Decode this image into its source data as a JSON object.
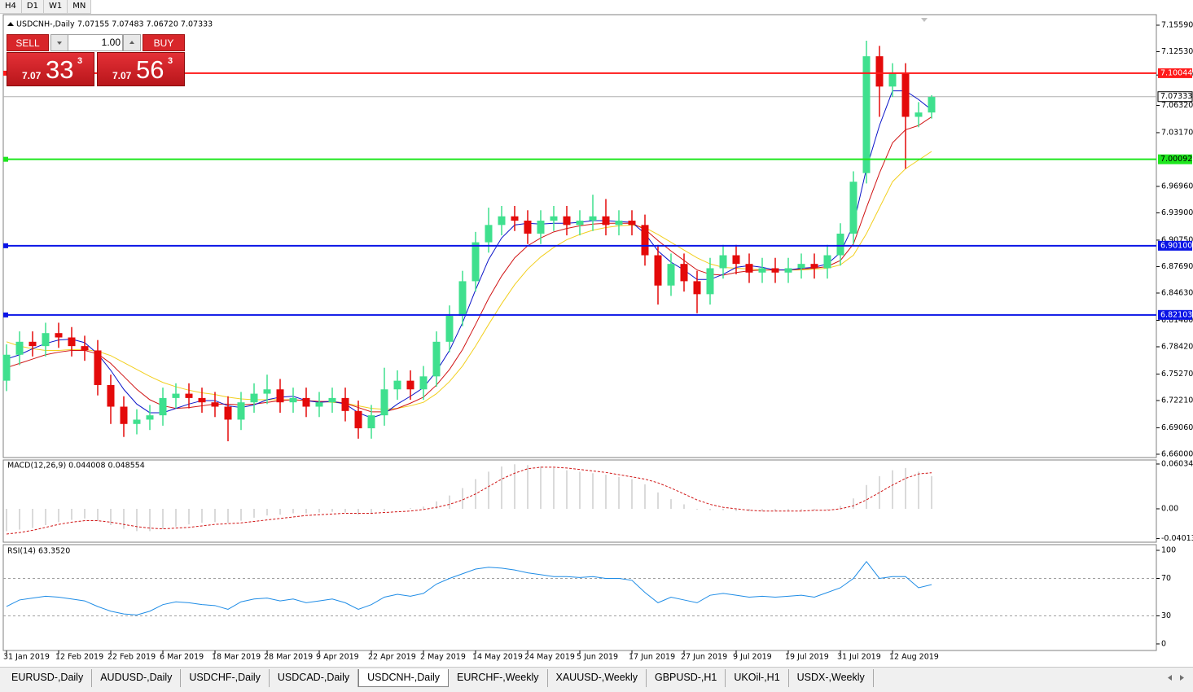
{
  "toolbar": {
    "timeframes": [
      "H4",
      "D1",
      "W1",
      "MN"
    ]
  },
  "trade_panel": {
    "sell": "SELL",
    "buy": "BUY",
    "lot": "1.00",
    "bid": {
      "big": "7.07",
      "pips": "33",
      "point": "3"
    },
    "ask": {
      "big": "7.07",
      "pips": "56",
      "point": "3"
    }
  },
  "chart_data": {
    "type": "candlestick",
    "title": "USDCNH-,Daily",
    "header_values": "7.07155 7.07483 7.06720 7.07333",
    "categories": [
      "31 Jan 2019",
      null,
      null,
      null,
      "12 Feb 2019",
      null,
      null,
      null,
      "22 Feb 2019",
      null,
      null,
      null,
      "6 Mar 2019",
      null,
      null,
      null,
      "18 Mar 2019",
      null,
      null,
      null,
      "28 Mar 2019",
      null,
      null,
      null,
      "9 Apr 2019",
      null,
      null,
      null,
      "22 Apr 2019",
      null,
      null,
      null,
      "2 May 2019",
      null,
      null,
      null,
      "14 May 2019",
      null,
      null,
      null,
      "24 May 2019",
      null,
      null,
      null,
      "5 Jun 2019",
      null,
      null,
      null,
      "17 Jun 2019",
      null,
      null,
      null,
      "27 Jun 2019",
      null,
      null,
      null,
      "9 Jul 2019",
      null,
      null,
      null,
      "19 Jul 2019",
      null,
      null,
      null,
      "31 Jul 2019",
      null,
      null,
      null,
      "12 Aug 2019",
      null,
      null,
      null
    ],
    "open": [
      6.745,
      6.775,
      6.79,
      6.785,
      6.8,
      6.795,
      6.785,
      6.78,
      6.74,
      6.715,
      6.695,
      6.7,
      6.705,
      6.725,
      6.73,
      6.725,
      6.72,
      6.715,
      6.7,
      6.72,
      6.73,
      6.735,
      6.72,
      6.725,
      6.715,
      6.72,
      6.725,
      6.71,
      6.69,
      6.705,
      6.735,
      6.745,
      6.735,
      6.75,
      6.79,
      6.82,
      6.86,
      6.905,
      6.925,
      6.935,
      6.93,
      6.915,
      6.93,
      6.935,
      6.925,
      6.93,
      6.935,
      6.925,
      6.93,
      6.925,
      6.89,
      6.855,
      6.88,
      6.86,
      6.845,
      6.875,
      6.89,
      6.88,
      6.87,
      6.875,
      6.87,
      6.875,
      6.88,
      6.875,
      6.89,
      6.915,
      6.985,
      7.12,
      7.085,
      7.1,
      7.05,
      7.055
    ],
    "high": [
      6.787,
      6.802,
      6.802,
      6.812,
      6.812,
      6.807,
      6.797,
      6.792,
      6.752,
      6.727,
      6.712,
      6.717,
      6.737,
      6.742,
      6.742,
      6.737,
      6.732,
      6.727,
      6.732,
      6.742,
      6.752,
      6.747,
      6.737,
      6.737,
      6.732,
      6.737,
      6.737,
      6.722,
      6.717,
      6.76,
      6.757,
      6.757,
      6.762,
      6.802,
      6.832,
      6.872,
      6.917,
      6.945,
      6.947,
      6.947,
      6.942,
      6.942,
      6.947,
      6.947,
      6.942,
      6.96,
      6.955,
      6.942,
      6.942,
      6.937,
      6.902,
      6.892,
      6.892,
      6.872,
      6.887,
      6.902,
      6.902,
      6.892,
      6.887,
      6.887,
      6.887,
      6.892,
      6.892,
      6.902,
      6.927,
      6.987,
      7.138,
      7.132,
      7.112,
      7.112,
      7.067,
      7.075
    ],
    "low": [
      6.733,
      6.763,
      6.773,
      6.773,
      6.783,
      6.773,
      6.768,
      6.728,
      6.695,
      6.68,
      6.683,
      6.688,
      6.693,
      6.713,
      6.713,
      6.708,
      6.703,
      6.675,
      6.688,
      6.708,
      6.718,
      6.708,
      6.708,
      6.703,
      6.703,
      6.708,
      6.698,
      6.678,
      6.678,
      6.693,
      6.723,
      6.723,
      6.723,
      6.738,
      6.778,
      6.808,
      6.848,
      6.893,
      6.913,
      6.918,
      6.903,
      6.903,
      6.918,
      6.913,
      6.913,
      6.918,
      6.913,
      6.913,
      6.913,
      6.878,
      6.833,
      6.843,
      6.848,
      6.823,
      6.833,
      6.863,
      6.868,
      6.858,
      6.858,
      6.858,
      6.858,
      6.863,
      6.863,
      6.863,
      6.878,
      6.903,
      6.973,
      7.05,
      7.073,
      6.99,
      7.038,
      7.048
    ],
    "close": [
      6.775,
      6.79,
      6.785,
      6.8,
      6.795,
      6.785,
      6.78,
      6.74,
      6.715,
      6.695,
      6.7,
      6.705,
      6.725,
      6.73,
      6.725,
      6.72,
      6.715,
      6.7,
      6.72,
      6.73,
      6.735,
      6.72,
      6.725,
      6.715,
      6.72,
      6.725,
      6.71,
      6.69,
      6.705,
      6.735,
      6.745,
      6.735,
      6.75,
      6.79,
      6.82,
      6.86,
      6.905,
      6.925,
      6.935,
      6.93,
      6.915,
      6.93,
      6.935,
      6.925,
      6.93,
      6.935,
      6.925,
      6.93,
      6.925,
      6.89,
      6.855,
      6.88,
      6.86,
      6.845,
      6.875,
      6.89,
      6.88,
      6.87,
      6.875,
      6.87,
      6.875,
      6.88,
      6.875,
      6.89,
      6.915,
      6.975,
      7.12,
      7.085,
      7.1,
      7.05,
      7.055,
      7.073
    ],
    "colors": {
      "up": "#3fe08e",
      "down": "#e40a0a"
    },
    "moving_averages": [
      {
        "color": "#f2cf1f",
        "values": [
          6.79,
          6.785,
          6.782,
          6.78,
          6.78,
          6.781,
          6.781,
          6.779,
          6.774,
          6.766,
          6.758,
          6.75,
          6.743,
          6.738,
          6.734,
          6.731,
          6.729,
          6.726,
          6.724,
          6.723,
          6.723,
          6.723,
          6.723,
          6.722,
          6.721,
          6.72,
          6.719,
          6.716,
          6.713,
          6.712,
          6.713,
          6.716,
          6.72,
          6.73,
          6.744,
          6.762,
          6.785,
          6.81,
          6.834,
          6.856,
          6.874,
          6.888,
          6.899,
          6.908,
          6.914,
          6.919,
          6.922,
          6.924,
          6.925,
          6.922,
          6.914,
          6.905,
          6.896,
          6.887,
          6.88,
          6.876,
          6.875,
          6.874,
          6.873,
          6.873,
          6.873,
          6.873,
          6.874,
          6.875,
          6.879,
          6.89,
          6.915,
          6.945,
          6.975,
          6.99,
          7.0,
          7.01
        ]
      },
      {
        "color": "#d01414",
        "values": [
          6.76,
          6.765,
          6.77,
          6.775,
          6.778,
          6.78,
          6.78,
          6.776,
          6.765,
          6.75,
          6.735,
          6.723,
          6.716,
          6.713,
          6.714,
          6.716,
          6.718,
          6.718,
          6.717,
          6.718,
          6.72,
          6.722,
          6.723,
          6.722,
          6.721,
          6.721,
          6.719,
          6.714,
          6.709,
          6.709,
          6.713,
          6.719,
          6.726,
          6.74,
          6.758,
          6.781,
          6.81,
          6.84,
          6.866,
          6.887,
          6.901,
          6.91,
          6.917,
          6.921,
          6.924,
          6.926,
          6.927,
          6.927,
          6.927,
          6.92,
          6.907,
          6.895,
          6.884,
          6.873,
          6.868,
          6.867,
          6.87,
          6.872,
          6.873,
          6.873,
          6.873,
          6.874,
          6.875,
          6.877,
          6.884,
          6.903,
          6.945,
          6.985,
          7.02,
          7.035,
          7.04,
          7.05
        ]
      },
      {
        "color": "#0a14c8",
        "values": [
          6.77,
          6.775,
          6.782,
          6.788,
          6.792,
          6.793,
          6.789,
          6.776,
          6.757,
          6.735,
          6.718,
          6.708,
          6.708,
          6.713,
          6.718,
          6.722,
          6.722,
          6.716,
          6.714,
          6.717,
          6.723,
          6.726,
          6.727,
          6.722,
          6.72,
          6.721,
          6.718,
          6.708,
          6.702,
          6.707,
          6.718,
          6.727,
          6.737,
          6.756,
          6.78,
          6.812,
          6.85,
          6.885,
          6.91,
          6.925,
          6.927,
          6.926,
          6.927,
          6.927,
          6.928,
          6.93,
          6.93,
          6.929,
          6.928,
          6.915,
          6.895,
          6.882,
          6.873,
          6.862,
          6.862,
          6.868,
          6.876,
          6.878,
          6.876,
          6.873,
          6.873,
          6.875,
          6.876,
          6.88,
          6.893,
          6.925,
          6.99,
          7.04,
          7.08,
          7.08,
          7.07,
          7.058
        ]
      }
    ],
    "ylim": [
      6.6562,
      7.1681
    ],
    "yticks": [
      {
        "value": 7.1559,
        "label": "7.15590"
      },
      {
        "value": 7.1253,
        "label": "7.12530"
      },
      {
        "value": 7.0983,
        "label": "7.09830"
      },
      {
        "value": 7.0632,
        "label": "7.06320"
      },
      {
        "value": 7.0317,
        "label": "7.03170"
      },
      {
        "value": 6.9696,
        "label": "6.96960"
      },
      {
        "value": 6.939,
        "label": "6.93900"
      },
      {
        "value": 6.9075,
        "label": "6.90750"
      },
      {
        "value": 6.8769,
        "label": "6.87690"
      },
      {
        "value": 6.8463,
        "label": "6.84630"
      },
      {
        "value": 6.8148,
        "label": "6.81480"
      },
      {
        "value": 6.7842,
        "label": "6.78420"
      },
      {
        "value": 6.7527,
        "label": "6.75270"
      },
      {
        "value": 6.7221,
        "label": "6.72210"
      },
      {
        "value": 6.6906,
        "label": "6.69060"
      },
      {
        "value": 6.66,
        "label": "6.66000"
      }
    ],
    "levels": [
      {
        "value": 7.10044,
        "color": "#ff1a1a",
        "text_color": "#ffffff"
      },
      {
        "value": 7.00092,
        "color": "#1ee61e",
        "text_color": "#000000"
      },
      {
        "value": 6.901,
        "label": "6.90100",
        "color": "#0a14e6",
        "text_color": "#ffffff"
      },
      {
        "value": 6.82103,
        "color": "#0a14e6",
        "text_color": "#ffffff"
      }
    ],
    "last_price": 7.07333,
    "macd": {
      "label": "MACD(12,26,9) 0.044008 0.048554",
      "histogram": [
        -0.03,
        -0.028,
        -0.026,
        -0.022,
        -0.018,
        -0.015,
        -0.013,
        -0.016,
        -0.022,
        -0.027,
        -0.03,
        -0.03,
        -0.027,
        -0.024,
        -0.021,
        -0.019,
        -0.018,
        -0.019,
        -0.016,
        -0.012,
        -0.009,
        -0.008,
        -0.006,
        -0.006,
        -0.005,
        -0.004,
        -0.005,
        -0.008,
        -0.007,
        -0.003,
        0.0,
        0.001,
        0.003,
        0.01,
        0.018,
        0.028,
        0.04,
        0.05,
        0.057,
        0.06,
        0.059,
        0.057,
        0.055,
        0.052,
        0.05,
        0.048,
        0.046,
        0.043,
        0.04,
        0.033,
        0.022,
        0.013,
        0.006,
        -0.001,
        -0.002,
        -0.002,
        -0.003,
        -0.003,
        -0.003,
        -0.003,
        -0.002,
        -0.002,
        -0.002,
        -0.001,
        0.004,
        0.014,
        0.032,
        0.044,
        0.052,
        0.055,
        0.05,
        0.044008
      ],
      "signal": [
        -0.034,
        -0.032,
        -0.029,
        -0.025,
        -0.021,
        -0.018,
        -0.016,
        -0.016,
        -0.018,
        -0.021,
        -0.024,
        -0.026,
        -0.027,
        -0.026,
        -0.025,
        -0.023,
        -0.021,
        -0.02,
        -0.019,
        -0.017,
        -0.015,
        -0.013,
        -0.011,
        -0.009,
        -0.008,
        -0.007,
        -0.006,
        -0.006,
        -0.006,
        -0.005,
        -0.004,
        -0.003,
        -0.001,
        0.002,
        0.006,
        0.012,
        0.02,
        0.03,
        0.04,
        0.048,
        0.054,
        0.056,
        0.056,
        0.055,
        0.053,
        0.051,
        0.049,
        0.046,
        0.043,
        0.04,
        0.035,
        0.028,
        0.02,
        0.012,
        0.006,
        0.002,
        0.0,
        -0.002,
        -0.003,
        -0.003,
        -0.003,
        -0.003,
        -0.002,
        -0.002,
        0.0,
        0.004,
        0.012,
        0.022,
        0.032,
        0.041,
        0.047,
        0.048554
      ],
      "histogram_color": "#b4b4b4",
      "signal_color": "#d01414",
      "ylim": [
        -0.045,
        0.0658
      ],
      "yticks": [
        0.060343,
        {
          "value": 0,
          "label": "0.00"
        },
        -0.040136
      ]
    },
    "rsi": {
      "label": "RSI(14) 63.3520",
      "values": [
        40,
        47,
        49,
        51,
        50,
        48,
        46,
        40,
        35,
        32,
        31,
        35,
        42,
        45,
        44,
        42,
        41,
        37,
        45,
        48,
        49,
        46,
        48,
        44,
        46,
        48,
        44,
        37,
        42,
        50,
        53,
        51,
        54,
        64,
        70,
        75,
        80,
        82,
        81,
        79,
        76,
        74,
        72,
        72,
        71,
        72,
        70,
        70,
        68,
        55,
        44,
        50,
        47,
        44,
        52,
        54,
        52,
        50,
        51,
        50,
        51,
        52,
        50,
        55,
        60,
        70,
        88,
        70,
        72,
        72,
        60,
        63.352
      ],
      "color": "#1e8ce6",
      "ylim": [
        -7,
        106.1
      ],
      "yticks": [
        100,
        70,
        30,
        0
      ],
      "levels": [
        70,
        30
      ]
    }
  },
  "tabs": [
    "EURUSD-,Daily",
    "AUDUSD-,Daily",
    "USDCHF-,Daily",
    "USDCAD-,Daily",
    "USDCNH-,Daily",
    "EURCHF-,Weekly",
    "XAUUSD-,Weekly",
    "GBPUSD-,H1",
    "UKOil-,H1",
    "USDX-,Weekly"
  ],
  "active_tab": 4
}
